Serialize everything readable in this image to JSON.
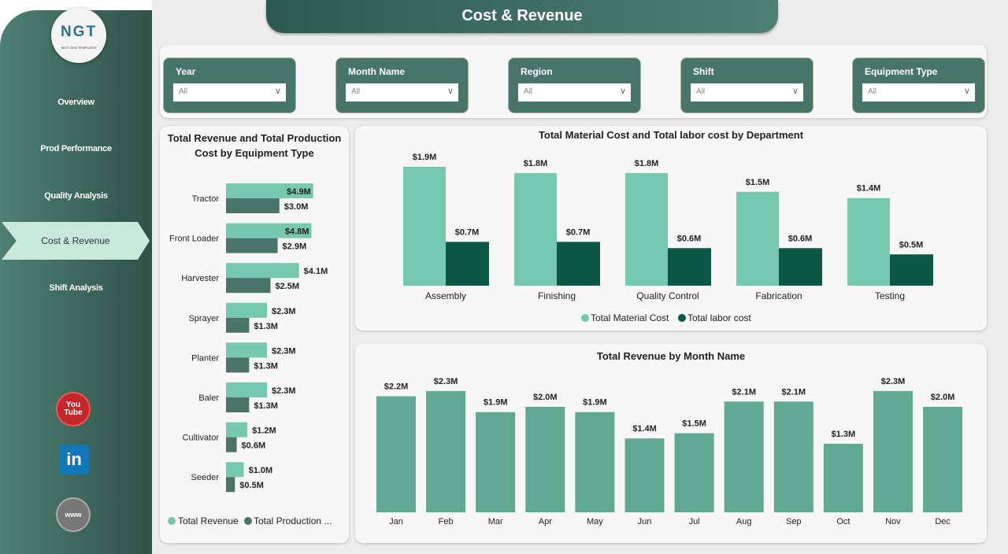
{
  "title": "Cost & Revenue",
  "logo": {
    "text": "NGT",
    "subtitle": "NEXT GEN TEMPLATES"
  },
  "nav": [
    "Overview",
    "Prod Performance",
    "Quality Analysis",
    "Cost & Revenue",
    "Shift Analysis"
  ],
  "social": [
    "youtube-icon",
    "linkedin-icon",
    "website-icon"
  ],
  "social_text": {
    "youtube": "You Tube",
    "linkedin": "in",
    "web": "www"
  },
  "filters": [
    {
      "label": "Year",
      "value": "All"
    },
    {
      "label": "Month Name",
      "value": "All"
    },
    {
      "label": "Region",
      "value": "All"
    },
    {
      "label": "Shift",
      "value": "All"
    },
    {
      "label": "Equipment Type",
      "value": "All"
    }
  ],
  "colors": {
    "revenue": "#76c8ae",
    "production": "#4a7468",
    "material": "#76c8ae",
    "labor": "#0d5844",
    "month": "#60a891"
  },
  "chart_data": [
    {
      "type": "bar",
      "orientation": "horizontal",
      "title": "Total Revenue and Total Production Cost by Equipment Type",
      "categories": [
        "Tractor",
        "Front Loader",
        "Harvester",
        "Sprayer",
        "Planter",
        "Baler",
        "Cultivator",
        "Seeder"
      ],
      "series": [
        {
          "name": "Total Revenue",
          "values": [
            4.9,
            4.8,
            4.1,
            2.3,
            2.3,
            2.3,
            1.2,
            1.0
          ],
          "labels": [
            "$4.9M",
            "$4.8M",
            "$4.1M",
            "$2.3M",
            "$2.3M",
            "$2.3M",
            "$1.2M",
            "$1.0M"
          ]
        },
        {
          "name": "Total Production ...",
          "values": [
            3.0,
            2.9,
            2.5,
            1.3,
            1.3,
            1.3,
            0.6,
            0.5
          ],
          "labels": [
            "$3.0M",
            "$2.9M",
            "$2.5M",
            "$1.3M",
            "$1.3M",
            "$1.3M",
            "$0.6M",
            "$0.5M"
          ]
        }
      ],
      "legend": "bottom"
    },
    {
      "type": "bar",
      "title": "Total Material Cost and Total labor cost by Department",
      "categories": [
        "Assembly",
        "Finishing",
        "Quality Control",
        "Fabrication",
        "Testing"
      ],
      "series": [
        {
          "name": "Total Material Cost",
          "values": [
            1.9,
            1.8,
            1.8,
            1.5,
            1.4
          ],
          "labels": [
            "$1.9M",
            "$1.8M",
            "$1.8M",
            "$1.5M",
            "$1.4M"
          ]
        },
        {
          "name": "Total labor cost",
          "values": [
            0.7,
            0.7,
            0.6,
            0.6,
            0.5
          ],
          "labels": [
            "$0.7M",
            "$0.7M",
            "$0.6M",
            "$0.6M",
            "$0.5M"
          ]
        }
      ],
      "legend": "bottom"
    },
    {
      "type": "bar",
      "title": "Total Revenue by Month Name",
      "categories": [
        "Jan",
        "Feb",
        "Mar",
        "Apr",
        "May",
        "Jun",
        "Jul",
        "Aug",
        "Sep",
        "Oct",
        "Nov",
        "Dec"
      ],
      "values": [
        2.2,
        2.3,
        1.9,
        2.0,
        1.9,
        1.4,
        1.5,
        2.1,
        2.1,
        1.3,
        2.3,
        2.0
      ],
      "labels": [
        "$2.2M",
        "$2.3M",
        "$1.9M",
        "$2.0M",
        "$1.9M",
        "$1.4M",
        "$1.5M",
        "$2.1M",
        "$2.1M",
        "$1.3M",
        "$2.3M",
        "$2.0M"
      ]
    }
  ]
}
